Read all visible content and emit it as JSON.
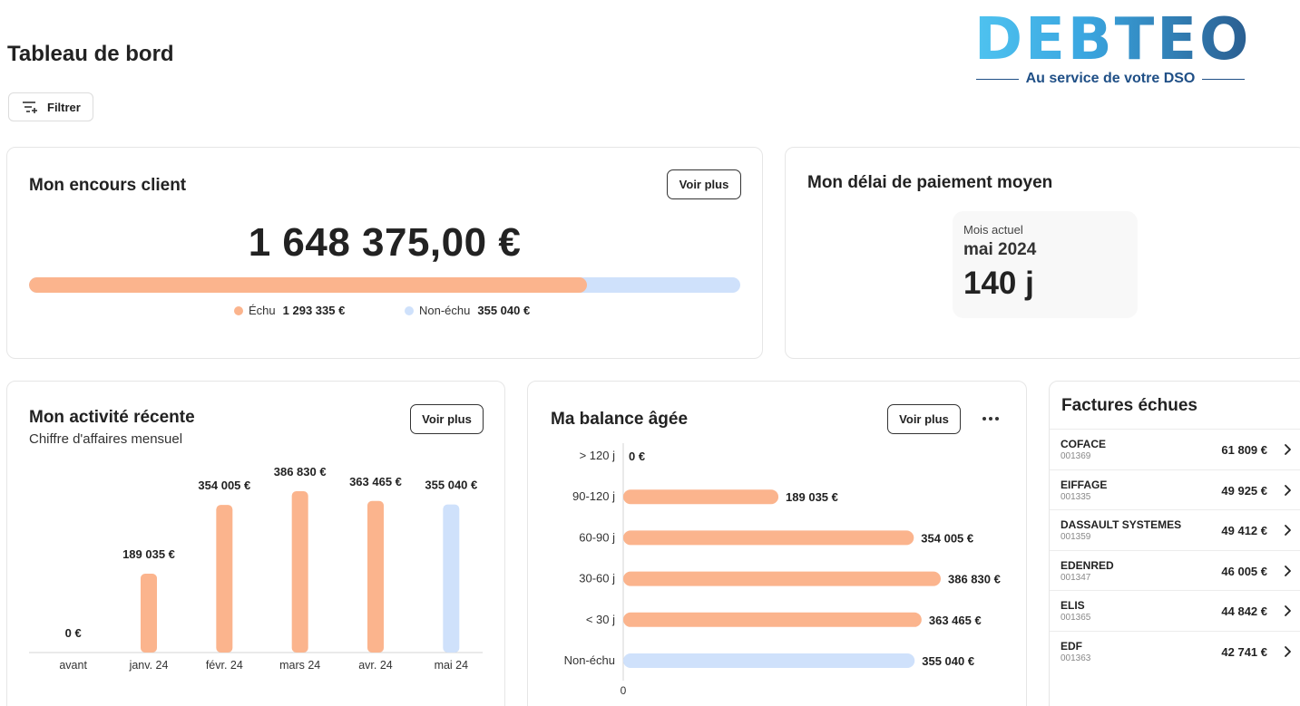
{
  "header": {
    "title": "Tableau de bord",
    "filter_label": "Filtrer",
    "filter_icon": "filter-add-icon"
  },
  "brand": {
    "logo_text": "DEBTEO",
    "tagline": "Au service de votre DSO",
    "colors": {
      "light": "#4fc3f0",
      "dark": "#1f4f86"
    }
  },
  "encours": {
    "title": "Mon encours client",
    "voir_plus": "Voir plus",
    "total": "1 648 375,00 €",
    "echu_label": "Échu",
    "echu_value": "1 293 335 €",
    "non_echu_label": "Non-échu",
    "non_echu_value": "355 040 €",
    "echu_fraction": 0.7846,
    "colors": {
      "echu": "#fbb48d",
      "non_echu": "#cfe1fb"
    }
  },
  "delai": {
    "title": "Mon délai de paiement moyen",
    "label": "Mois actuel",
    "month": "mai 2024",
    "value": "140 j"
  },
  "activite": {
    "title": "Mon activité récente",
    "subtitle": "Chiffre d'affaires mensuel",
    "voir_plus": "Voir plus"
  },
  "balance": {
    "title": "Ma balance âgée",
    "voir_plus": "Voir plus",
    "more_icon": "more-horizontal-icon"
  },
  "factures": {
    "title": "Factures échues",
    "rows": [
      {
        "name": "COFACE",
        "code": "001369",
        "amount": "61 809 €"
      },
      {
        "name": "EIFFAGE",
        "code": "001335",
        "amount": "49 925 €"
      },
      {
        "name": "DASSAULT SYSTEMES",
        "code": "001359",
        "amount": "49 412 €"
      },
      {
        "name": "EDENRED",
        "code": "001347",
        "amount": "46 005 €"
      },
      {
        "name": "ELIS",
        "code": "001365",
        "amount": "44 842 €"
      },
      {
        "name": "EDF",
        "code": "001363",
        "amount": "42 741 €"
      }
    ]
  },
  "chart_data": [
    {
      "type": "bar",
      "title": "Mon activité récente",
      "subtitle": "Chiffre d'affaires mensuel",
      "categories": [
        "avant",
        "janv. 24",
        "févr. 24",
        "mars 24",
        "avr. 24",
        "mai 24"
      ],
      "values": [
        0,
        189035,
        354005,
        386830,
        363465,
        355040
      ],
      "labels": [
        "0 €",
        "189 035 €",
        "354 005 €",
        "386 830 €",
        "363 465 €",
        "355 040 €"
      ],
      "colors": [
        "#fbb48d",
        "#fbb48d",
        "#fbb48d",
        "#fbb48d",
        "#fbb48d",
        "#cfe1fb"
      ],
      "ylim": [
        0,
        386830
      ],
      "grid": false
    },
    {
      "type": "bar",
      "orientation": "horizontal",
      "title": "Ma balance âgée",
      "categories": [
        "> 120 j",
        "90-120 j",
        "60-90 j",
        "30-60 j",
        "< 30 j",
        "Non-échu"
      ],
      "values": [
        0,
        189035,
        354005,
        386830,
        363465,
        355040
      ],
      "labels": [
        "0 €",
        "189 035 €",
        "354 005 €",
        "386 830 €",
        "363 465 €",
        "355 040 €"
      ],
      "colors": [
        "#fbb48d",
        "#fbb48d",
        "#fbb48d",
        "#fbb48d",
        "#fbb48d",
        "#cfe1fb"
      ],
      "xlim": [
        0,
        386830
      ],
      "x_tick_labels": [
        "0"
      ],
      "grid": false
    }
  ]
}
